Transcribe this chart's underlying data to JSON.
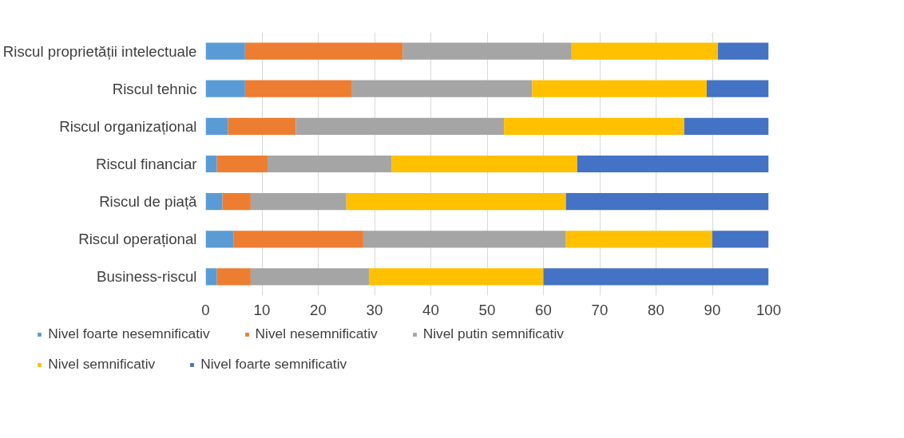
{
  "chart_data": {
    "type": "bar",
    "orientation": "horizontal",
    "stacked": true,
    "categories": [
      "Riscul proprietății intelectuale",
      "Riscul tehnic",
      "Riscul organizațional",
      "Riscul financiar",
      "Riscul de piață",
      "Riscul operațional",
      "Business-riscul"
    ],
    "series": [
      {
        "name": "Nivel foarte nesemnificativ",
        "color": "#5b9bd5",
        "values": [
          7,
          7,
          4,
          2,
          3,
          5,
          2
        ]
      },
      {
        "name": "Nivel nesemnificativ",
        "color": "#ed7d31",
        "values": [
          28,
          19,
          12,
          9,
          5,
          23,
          6
        ]
      },
      {
        "name": "Nivel putin semnificativ",
        "color": "#a5a5a5",
        "values": [
          30,
          32,
          37,
          22,
          17,
          36,
          21
        ]
      },
      {
        "name": "Nivel semnificativ",
        "color": "#ffc000",
        "values": [
          26,
          31,
          32,
          33,
          39,
          26,
          31
        ]
      },
      {
        "name": "Nivel foarte semnificativ",
        "color": "#4472c4",
        "values": [
          9,
          11,
          15,
          34,
          36,
          10,
          40
        ]
      }
    ],
    "xlim": [
      0,
      100
    ],
    "xticks": [
      0,
      10,
      20,
      30,
      40,
      50,
      60,
      70,
      80,
      90,
      100
    ],
    "grid": "x",
    "legend": "bottom"
  }
}
